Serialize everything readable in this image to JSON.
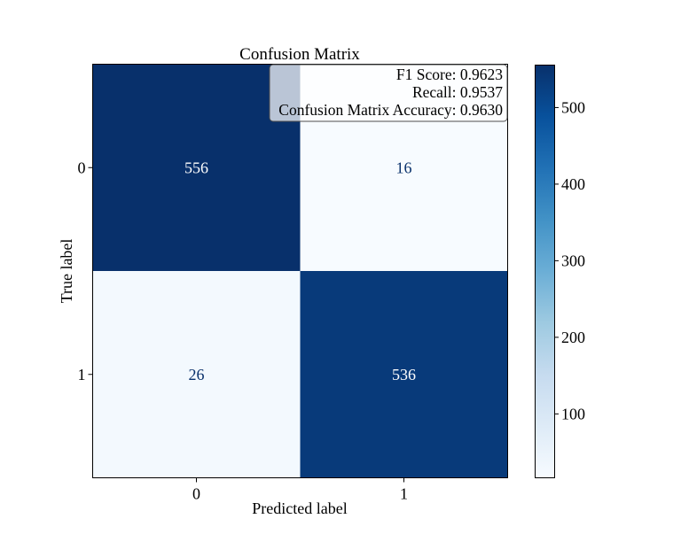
{
  "chart_data": {
    "type": "heatmap",
    "title": "Confusion Matrix",
    "xlabel": "Predicted label",
    "ylabel": "True label",
    "x_categories": [
      "0",
      "1"
    ],
    "y_categories": [
      "0",
      "1"
    ],
    "values": [
      [
        556,
        16
      ],
      [
        26,
        536
      ]
    ],
    "colormap": "Blues",
    "colorbar": {
      "vmin": 16,
      "vmax": 556,
      "ticks": [
        100,
        200,
        300,
        400,
        500
      ]
    },
    "annotation": {
      "lines": [
        "F1 Score: 0.9623",
        "Recall: 0.9537",
        "Confusion Matrix Accuracy: 0.9630"
      ],
      "placement": "top-right"
    },
    "colors": {
      "light_text": "#ffffff",
      "dark_text": "#08306b",
      "low": "#f7fbff",
      "high": "#08306b"
    }
  }
}
